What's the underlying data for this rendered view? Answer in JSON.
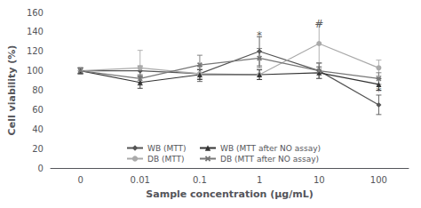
{
  "chart_data": {
    "type": "line",
    "xlabel": "Sample concentration (μg/mL)",
    "ylabel": "Cell viability (%)",
    "categories": [
      "0",
      "0.01",
      "0.1",
      "1",
      "10",
      "100"
    ],
    "series": [
      {
        "name": "WB (MTT)",
        "color": "#555555",
        "marker": "diamond",
        "line_style": "solid",
        "values": [
          100,
          100,
          97,
          120,
          100,
          65
        ],
        "yerr": [
          3,
          5,
          8,
          15,
          8,
          10
        ]
      },
      {
        "name": "DB (MTT)",
        "color": "#aaaaaa",
        "marker": "circle",
        "line_style": "solid",
        "values": [
          100,
          103,
          97,
          96,
          128,
          103
        ],
        "yerr": [
          3,
          18,
          5,
          5,
          20,
          8
        ]
      },
      {
        "name": "WB (MTT after NO assay)",
        "color": "#333333",
        "marker": "triangle",
        "line_style": "solid",
        "values": [
          100,
          88,
          96,
          96,
          98,
          86
        ],
        "yerr": [
          3,
          6,
          5,
          5,
          6,
          6
        ]
      },
      {
        "name": "DB (MTT after NO assay)",
        "color": "#777777",
        "marker": "x",
        "line_style": "solid",
        "values": [
          100,
          92,
          106,
          113,
          100,
          92
        ],
        "yerr": [
          3,
          4,
          10,
          10,
          8,
          6
        ]
      }
    ],
    "ylim": [
      0,
      160
    ],
    "yticks": [
      0,
      20,
      40,
      60,
      80,
      100,
      120,
      140,
      160
    ],
    "annotations": [
      {
        "text": "*",
        "x": "1",
        "y": 130
      },
      {
        "text": "#",
        "x": "10",
        "y": 142
      },
      {
        "text": "*",
        "x": "100",
        "y": 72
      }
    ],
    "legend": "lower center",
    "grid": false
  }
}
